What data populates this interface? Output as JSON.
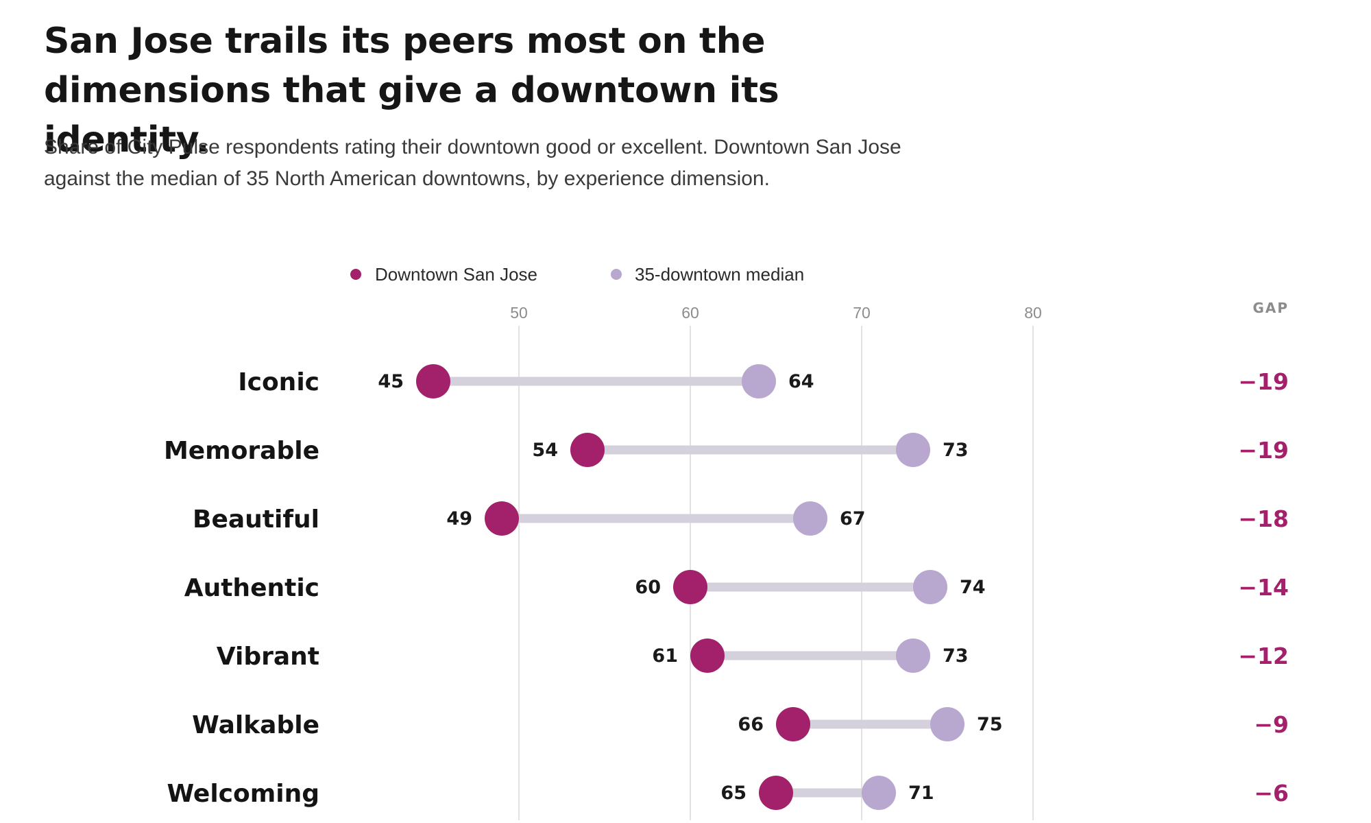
{
  "title": "San Jose trails its peers most on the dimensions that give a downtown its identity.",
  "subtitle": "Share of City Pulse respondents rating their downtown good or excellent. Downtown San Jose against the median of 35 North American downtowns, by experience dimension.",
  "colors": {
    "san_jose": "#a3206b",
    "median": "#b8a7cf",
    "connector": "#d4d0dc",
    "gridline": "#e2e2e2",
    "gap_text": "#a3206b"
  },
  "chart_data": {
    "type": "dumbbell",
    "title": "San Jose trails its peers most on the dimensions that give a downtown its identity.",
    "subtitle": "Share of City Pulse respondents rating their downtown good or excellent. Downtown San Jose against the median of 35 North American downtowns, by experience dimension.",
    "xlim": [
      40,
      80
    ],
    "x_ticks": [
      50,
      60,
      70,
      80
    ],
    "grid": "vertical",
    "legend_position": "top",
    "gap_header": "GAP",
    "categories": [
      "Iconic",
      "Memorable",
      "Beautiful",
      "Authentic",
      "Vibrant",
      "Walkable",
      "Welcoming"
    ],
    "series": [
      {
        "name": "Downtown San Jose",
        "values": [
          45,
          54,
          49,
          60,
          61,
          66,
          65
        ]
      },
      {
        "name": "35-downtown median",
        "values": [
          64,
          73,
          67,
          74,
          73,
          75,
          71
        ]
      }
    ],
    "gaps": [
      "−19",
      "−19",
      "−18",
      "−14",
      "−12",
      "−9",
      "−6"
    ]
  }
}
